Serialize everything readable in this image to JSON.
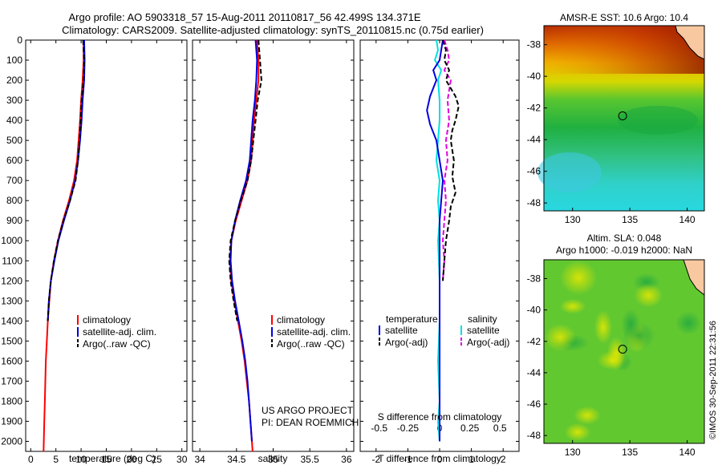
{
  "title_line1": "Argo profile: AO 5903318_57 15-Aug-2011 20110817_56 42.499S 134.371E",
  "title_line2": "Climatology: CARS2009. Satellite-adjusted climatology: synTS_20110815.nc (0.75d earlier)",
  "side_stamp": "©IMOS 30-Sep-2011 22:31:56",
  "colors": {
    "climatology": "#ff0000",
    "satellite": "#0000dd",
    "argo": "#000000",
    "salinity_satellite": "#00e0e0",
    "salinity_argo": "#e000e0"
  },
  "chart_data": [
    {
      "type": "line",
      "ylim": [
        2050,
        0
      ],
      "yticks": [
        0,
        100,
        200,
        300,
        400,
        500,
        600,
        700,
        800,
        900,
        1000,
        1100,
        1200,
        1300,
        1400,
        1500,
        1600,
        1700,
        1800,
        1900,
        2000
      ],
      "xlabel": "temperature (deg C)",
      "xlim": [
        -1,
        31
      ],
      "xticks": [
        0,
        5,
        10,
        15,
        20,
        25,
        30
      ],
      "legend": [
        "climatology",
        "satellite-adj. clim.",
        "Argo(..raw -QC)"
      ],
      "series": [
        {
          "name": "climatology",
          "points": [
            [
              10.5,
              0
            ],
            [
              10.5,
              100
            ],
            [
              10.3,
              200
            ],
            [
              10.0,
              300
            ],
            [
              9.8,
              400
            ],
            [
              9.5,
              500
            ],
            [
              9.2,
              600
            ],
            [
              8.6,
              700
            ],
            [
              7.6,
              800
            ],
            [
              6.4,
              900
            ],
            [
              5.4,
              1000
            ],
            [
              4.6,
              1100
            ],
            [
              4.0,
              1200
            ],
            [
              3.7,
              1300
            ],
            [
              3.4,
              1400
            ],
            [
              3.2,
              1500
            ],
            [
              3.0,
              1600
            ],
            [
              2.9,
              1700
            ],
            [
              2.8,
              1800
            ],
            [
              2.7,
              1900
            ],
            [
              2.6,
              2000
            ],
            [
              2.55,
              2050
            ]
          ]
        },
        {
          "name": "satellite-adj. clim.",
          "points": [
            [
              10.6,
              0
            ],
            [
              10.7,
              100
            ],
            [
              10.6,
              200
            ],
            [
              10.3,
              300
            ],
            [
              10.1,
              400
            ],
            [
              9.8,
              500
            ],
            [
              9.4,
              600
            ],
            [
              8.8,
              700
            ],
            [
              7.8,
              800
            ],
            [
              6.6,
              900
            ],
            [
              5.5,
              1000
            ],
            [
              4.7,
              1100
            ],
            [
              4.0,
              1200
            ],
            [
              3.6,
              1300
            ],
            [
              3.4,
              1400
            ]
          ]
        },
        {
          "name": "Argo(..raw -QC)",
          "points": [
            [
              10.4,
              0
            ],
            [
              10.6,
              100
            ],
            [
              10.5,
              200
            ],
            [
              10.1,
              300
            ],
            [
              9.9,
              400
            ],
            [
              9.7,
              500
            ],
            [
              9.4,
              600
            ],
            [
              8.9,
              700
            ],
            [
              7.8,
              800
            ],
            [
              6.5,
              900
            ],
            [
              5.4,
              1000
            ],
            [
              4.6,
              1100
            ],
            [
              4.0,
              1200
            ],
            [
              3.6,
              1300
            ],
            [
              3.4,
              1400
            ]
          ]
        }
      ]
    },
    {
      "type": "line",
      "ylim": [
        2050,
        0
      ],
      "xlabel": "salinity",
      "xlim": [
        33.9,
        36.1
      ],
      "xticks": [
        34,
        34.5,
        35,
        35.5,
        36
      ],
      "legend": [
        "climatology",
        "satellite-adj. clim.",
        "Argo(..raw -QC)"
      ],
      "annotation": [
        "US ARGO PROJECT",
        "PI: DEAN ROEMMICH"
      ],
      "series": [
        {
          "name": "climatology",
          "points": [
            [
              34.78,
              0
            ],
            [
              34.8,
              100
            ],
            [
              34.8,
              200
            ],
            [
              34.77,
              300
            ],
            [
              34.74,
              400
            ],
            [
              34.72,
              500
            ],
            [
              34.7,
              600
            ],
            [
              34.65,
              700
            ],
            [
              34.57,
              800
            ],
            [
              34.49,
              900
            ],
            [
              34.43,
              1000
            ],
            [
              34.41,
              1100
            ],
            [
              34.43,
              1200
            ],
            [
              34.47,
              1300
            ],
            [
              34.52,
              1400
            ],
            [
              34.57,
              1500
            ],
            [
              34.61,
              1600
            ],
            [
              34.64,
              1700
            ],
            [
              34.67,
              1800
            ],
            [
              34.69,
              1900
            ],
            [
              34.71,
              2000
            ],
            [
              34.72,
              2050
            ]
          ]
        },
        {
          "name": "satellite-adj. clim.",
          "points": [
            [
              34.76,
              0
            ],
            [
              34.78,
              100
            ],
            [
              34.77,
              200
            ],
            [
              34.75,
              300
            ],
            [
              34.72,
              400
            ],
            [
              34.7,
              500
            ],
            [
              34.68,
              600
            ],
            [
              34.63,
              700
            ],
            [
              34.55,
              800
            ],
            [
              34.48,
              900
            ],
            [
              34.43,
              1000
            ],
            [
              34.42,
              1100
            ],
            [
              34.44,
              1200
            ],
            [
              34.48,
              1300
            ],
            [
              34.53,
              1400
            ],
            [
              34.58,
              1500
            ],
            [
              34.62,
              1600
            ],
            [
              34.65,
              1700
            ],
            [
              34.67,
              1800
            ],
            [
              34.69,
              1900
            ],
            [
              34.71,
              2000
            ]
          ]
        },
        {
          "name": "Argo(..raw -QC)",
          "points": [
            [
              34.8,
              0
            ],
            [
              34.82,
              100
            ],
            [
              34.84,
              200
            ],
            [
              34.79,
              300
            ],
            [
              34.76,
              400
            ],
            [
              34.73,
              500
            ],
            [
              34.7,
              600
            ],
            [
              34.65,
              700
            ],
            [
              34.56,
              800
            ],
            [
              34.48,
              900
            ],
            [
              34.42,
              1000
            ],
            [
              34.4,
              1100
            ],
            [
              34.42,
              1200
            ],
            [
              34.46,
              1300
            ],
            [
              34.51,
              1400
            ]
          ]
        }
      ]
    },
    {
      "type": "line",
      "ylim": [
        2050,
        0
      ],
      "xlabel": "T difference from climatology",
      "xlim": [
        -2.5,
        2.5
      ],
      "xticks": [
        -2,
        -1,
        0,
        1,
        2
      ],
      "xlabel_top": "S difference from climatology",
      "xticks_top_labels": [
        "-0.5",
        "-0.25",
        "0",
        "0.25",
        "0.5"
      ],
      "xticks_top_values": [
        -1.9,
        -1.0,
        0,
        0.95,
        1.9
      ],
      "legend_headers": [
        "temperature",
        "salinity"
      ],
      "legend": [
        "satellite",
        "Argo(-adj)",
        "satellite",
        "Argo(-adj)"
      ],
      "series": [
        {
          "name": "temperature satellite",
          "points": [
            [
              0.1,
              0
            ],
            [
              0.05,
              50
            ],
            [
              0.0,
              100
            ],
            [
              -0.2,
              150
            ],
            [
              -0.1,
              200
            ],
            [
              -0.3,
              280
            ],
            [
              -0.4,
              350
            ],
            [
              -0.3,
              420
            ],
            [
              -0.1,
              500
            ],
            [
              0.0,
              600
            ],
            [
              0.1,
              700
            ],
            [
              0.05,
              800
            ],
            [
              0.0,
              900
            ],
            [
              0.0,
              1000
            ],
            [
              0.0,
              1200
            ],
            [
              0.0,
              1400
            ],
            [
              0.0,
              1600
            ],
            [
              0.0,
              1800
            ],
            [
              0.0,
              2000
            ]
          ]
        },
        {
          "name": "temperature Argo(-adj)",
          "points": [
            [
              0.1,
              0
            ],
            [
              0.2,
              50
            ],
            [
              0.15,
              100
            ],
            [
              0.3,
              150
            ],
            [
              0.2,
              200
            ],
            [
              0.5,
              280
            ],
            [
              0.6,
              330
            ],
            [
              0.5,
              400
            ],
            [
              0.4,
              450
            ],
            [
              0.35,
              500
            ],
            [
              0.45,
              600
            ],
            [
              0.4,
              680
            ],
            [
              0.5,
              760
            ],
            [
              0.35,
              830
            ],
            [
              0.3,
              900
            ],
            [
              0.2,
              1000
            ],
            [
              0.15,
              1100
            ],
            [
              0.1,
              1200
            ]
          ]
        },
        {
          "name": "salinity satellite",
          "points": [
            [
              -0.1,
              0
            ],
            [
              -0.05,
              50
            ],
            [
              -0.15,
              100
            ],
            [
              0.05,
              150
            ],
            [
              -0.05,
              200
            ],
            [
              0.0,
              300
            ],
            [
              0.0,
              400
            ],
            [
              -0.05,
              500
            ],
            [
              -0.1,
              600
            ],
            [
              0.0,
              700
            ],
            [
              -0.05,
              800
            ],
            [
              0.0,
              900
            ],
            [
              -0.05,
              1000
            ],
            [
              0.0,
              1200
            ],
            [
              0.0,
              1400
            ],
            [
              -0.05,
              1600
            ],
            [
              0.0,
              1800
            ],
            [
              -0.05,
              1900
            ],
            [
              0.0,
              2000
            ]
          ]
        },
        {
          "name": "salinity Argo(-adj)",
          "points": [
            [
              0.15,
              0
            ],
            [
              0.25,
              50
            ],
            [
              0.3,
              100
            ],
            [
              0.15,
              150
            ],
            [
              0.35,
              200
            ],
            [
              0.25,
              300
            ],
            [
              0.3,
              400
            ],
            [
              0.2,
              500
            ],
            [
              0.25,
              600
            ],
            [
              0.15,
              700
            ],
            [
              0.2,
              800
            ],
            [
              0.15,
              900
            ],
            [
              0.1,
              1000
            ],
            [
              0.15,
              1100
            ],
            [
              0.1,
              1200
            ]
          ]
        }
      ]
    },
    {
      "type": "heatmap",
      "title": "AMSR-E SST: 10.6 Argo: 10.4",
      "xlim": [
        127.5,
        141.5
      ],
      "ylim": [
        -48.5,
        -36.8
      ],
      "xticks": [
        130,
        135,
        140
      ],
      "yticks": [
        -38,
        -40,
        -42,
        -44,
        -46,
        -48
      ],
      "marker": [
        134.371,
        -42.499
      ]
    },
    {
      "type": "heatmap",
      "title_lines": [
        "Altim. SLA: 0.048",
        "Argo h1000: -0.019 h2000: NaN"
      ],
      "xlim": [
        127.5,
        141.5
      ],
      "ylim": [
        -48.5,
        -36.8
      ],
      "xticks": [
        130,
        135,
        140
      ],
      "yticks": [
        -38,
        -40,
        -42,
        -44,
        -46,
        -48
      ],
      "marker": [
        134.371,
        -42.499
      ]
    }
  ]
}
